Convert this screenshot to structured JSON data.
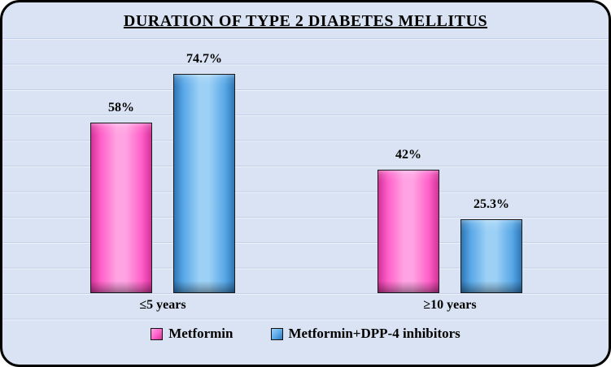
{
  "colors": {
    "card_background": "#d9e3f3",
    "card_border": "#000000",
    "gridline_dark": "#c2cfe8",
    "gridline_light": "#eef3fb",
    "text": "#000000"
  },
  "chart_data": {
    "type": "bar",
    "title": "DURATION OF TYPE 2 DIABETES MELLITUS",
    "categories": [
      "≤5 years",
      "≥10 years"
    ],
    "series": [
      {
        "name": "Metformin",
        "values": [
          58,
          42
        ],
        "labels": [
          "58%",
          "42%"
        ],
        "fill": {
          "edge": "#d23398",
          "mid": "#ff5fc8",
          "light": "#ffa3e2",
          "dark": "#a81f7e"
        }
      },
      {
        "name": "Metformin+DPP-4 inhibitors",
        "values": [
          74.7,
          25.3
        ],
        "labels": [
          "74.7%",
          "25.3%"
        ],
        "fill": {
          "edge": "#2f76b6",
          "mid": "#59a9e8",
          "light": "#9cd0f5",
          "dark": "#1e5c97"
        }
      }
    ],
    "value_suffix": "%",
    "grid": true,
    "legend_position": "bottom"
  }
}
